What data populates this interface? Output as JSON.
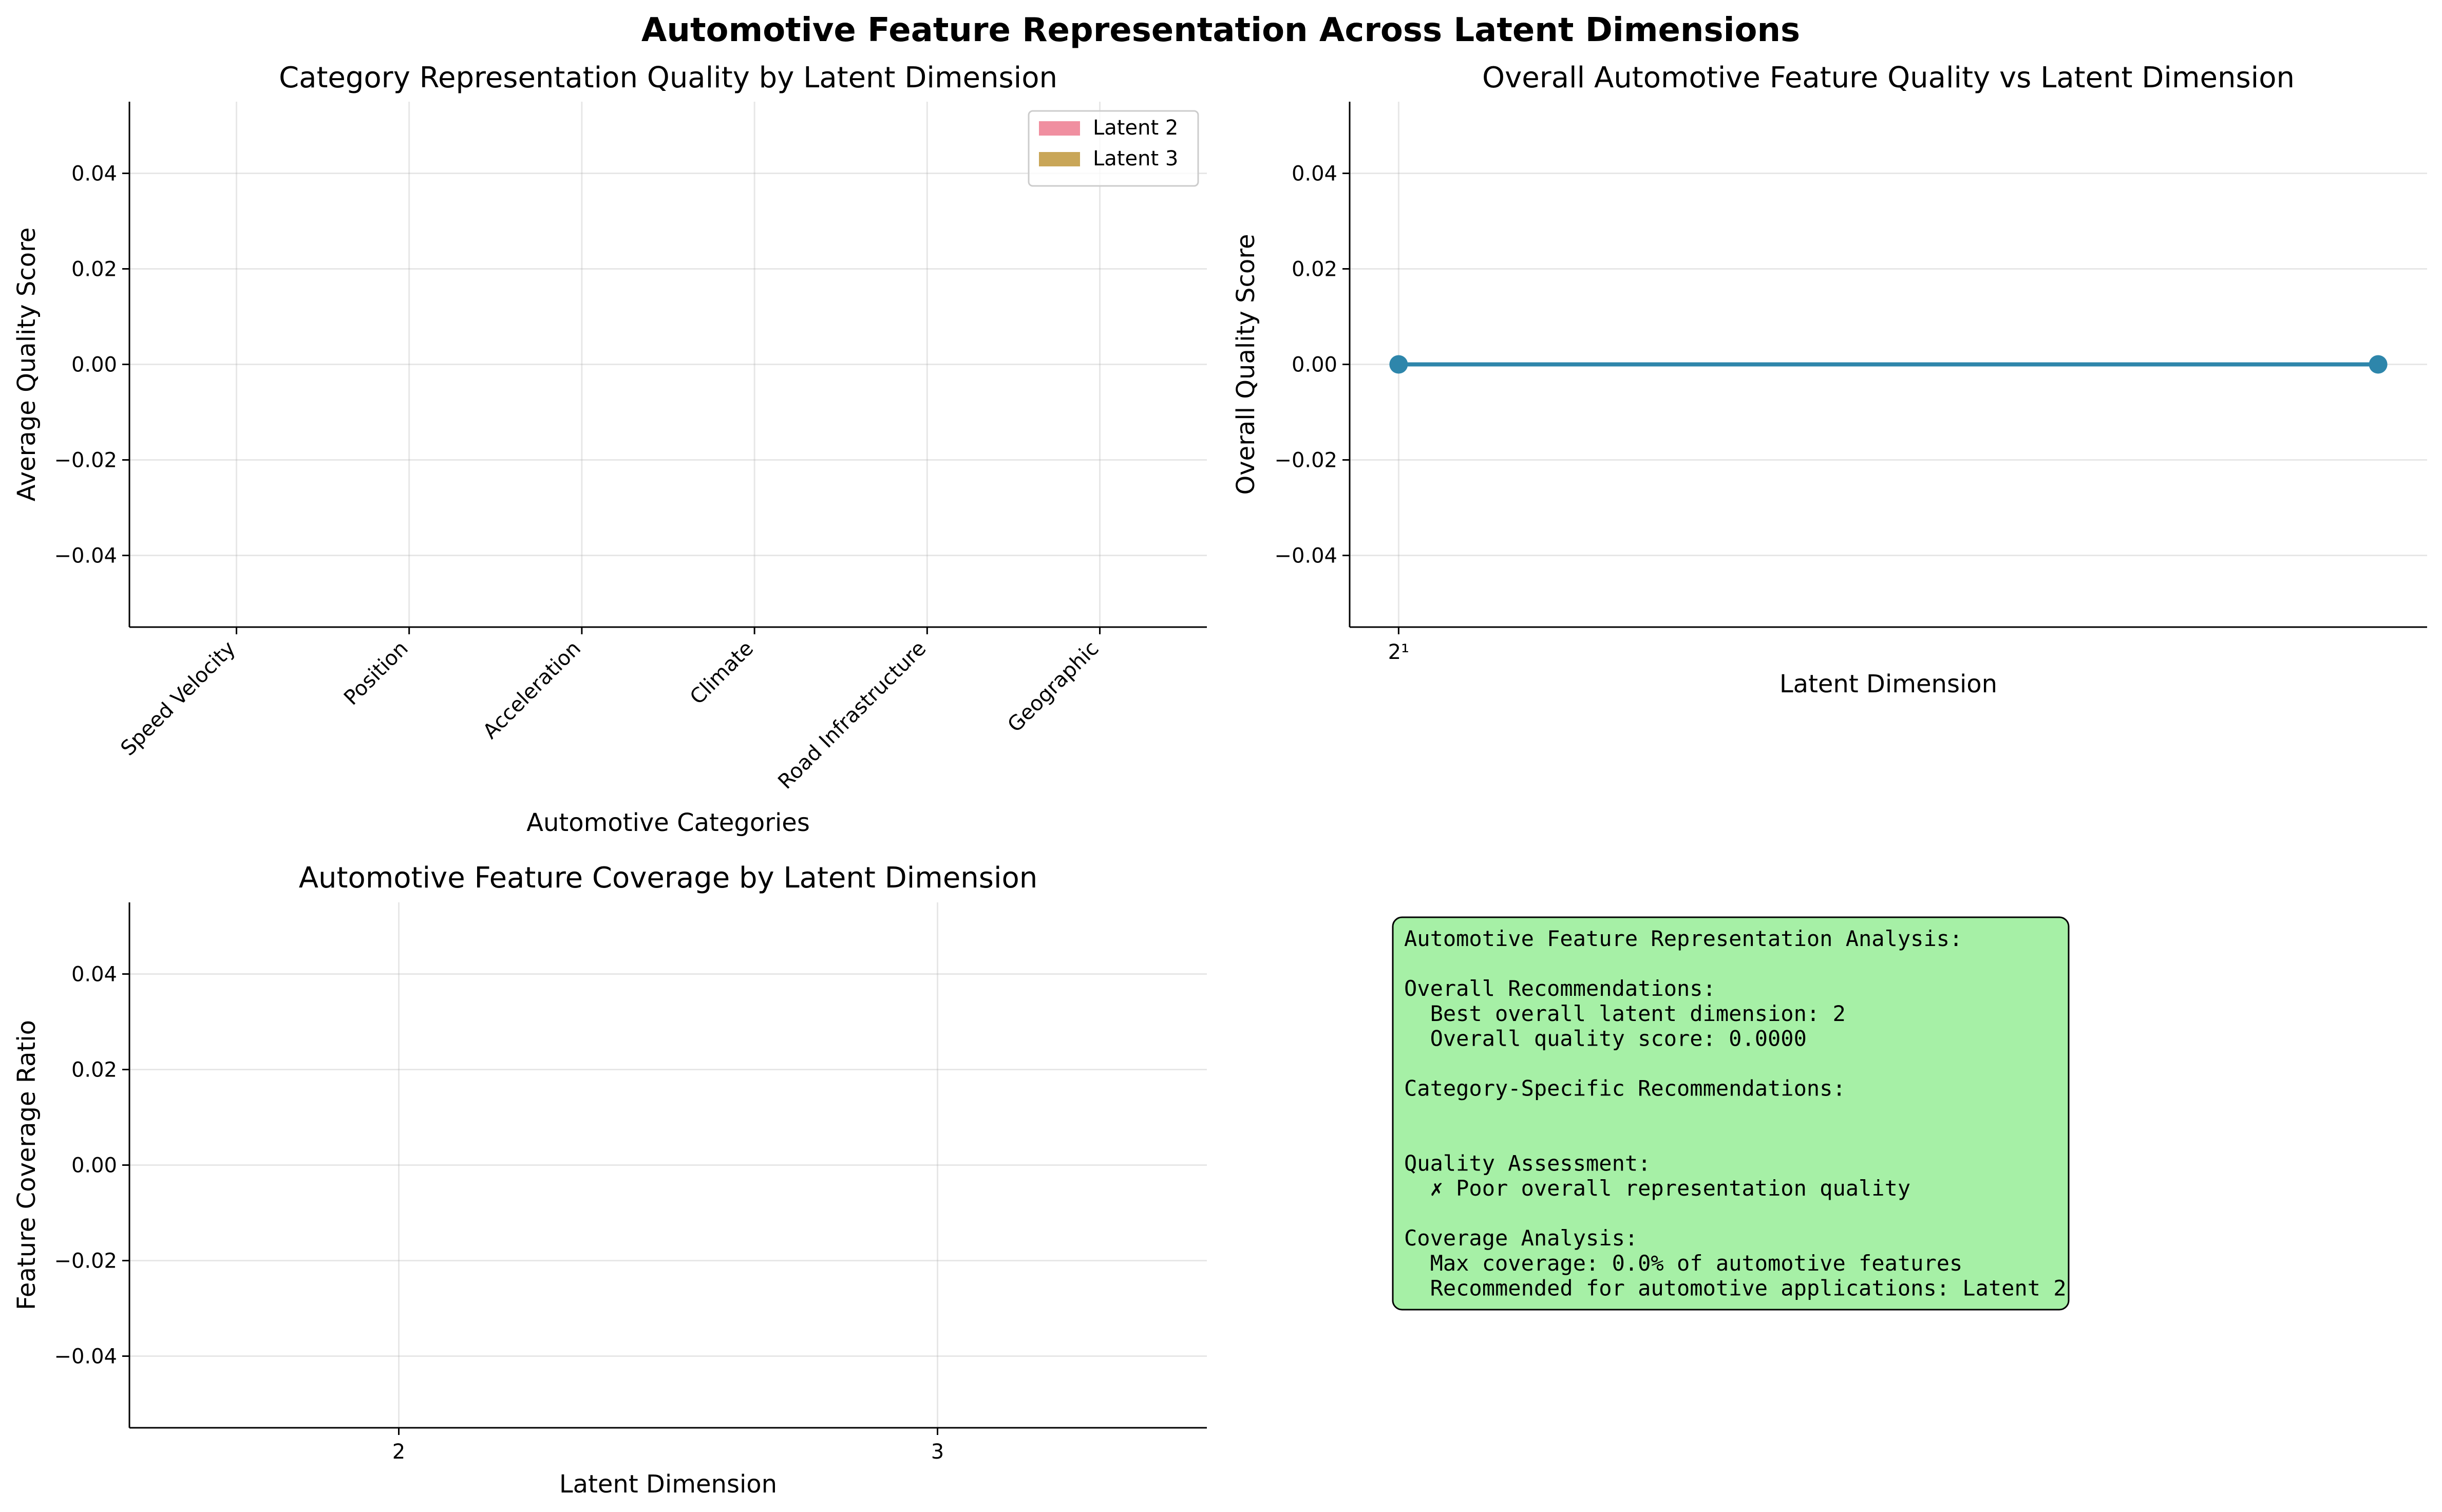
{
  "figure": {
    "suptitle": "Automotive Feature Representation Across Latent Dimensions"
  },
  "colors": {
    "latent2": "#f08fa0",
    "latent3": "#c9a658",
    "line": "#2e86ab",
    "textbox_bg": "#a6f0a6",
    "grid": "#b0b0b0"
  },
  "chart_data": [
    {
      "type": "bar",
      "title": "Category Representation Quality by Latent Dimension",
      "xlabel": "Automotive Categories",
      "ylabel": "Average Quality Score",
      "categories": [
        "Speed Velocity",
        "Position",
        "Acceleration",
        "Climate",
        "Road Infrastructure",
        "Geographic"
      ],
      "series": [
        {
          "name": "Latent 2",
          "values": [
            0,
            0,
            0,
            0,
            0,
            0
          ]
        },
        {
          "name": "Latent 3",
          "values": [
            0,
            0,
            0,
            0,
            0,
            0
          ]
        }
      ],
      "ylim": [
        -0.055,
        0.055
      ],
      "yticks": [
        0.04,
        0.02,
        0.0,
        -0.02,
        -0.04
      ],
      "ytick_labels": [
        "0.04",
        "0.02",
        "0.00",
        "−0.02",
        "−0.04"
      ],
      "legend": "top-right",
      "grid": true
    },
    {
      "type": "line",
      "title": "Overall Automotive Feature Quality vs Latent Dimension",
      "xlabel": "Latent Dimension",
      "ylabel": "Overall Quality Score",
      "x": [
        2,
        3
      ],
      "y": [
        0.0,
        0.0
      ],
      "xscale": "log",
      "xticks": [
        2
      ],
      "xtick_labels": [
        "2¹"
      ],
      "ylim": [
        -0.055,
        0.055
      ],
      "yticks": [
        0.04,
        0.02,
        0.0,
        -0.02,
        -0.04
      ],
      "ytick_labels": [
        "0.04",
        "0.02",
        "0.00",
        "−0.02",
        "−0.04"
      ],
      "grid": true
    },
    {
      "type": "bar",
      "title": "Automotive Feature Coverage by Latent Dimension",
      "xlabel": "Latent Dimension",
      "ylabel": "Feature Coverage Ratio",
      "categories": [
        "2",
        "3"
      ],
      "values": [
        0,
        0
      ],
      "ylim": [
        -0.055,
        0.055
      ],
      "yticks": [
        0.04,
        0.02,
        0.0,
        -0.02,
        -0.04
      ],
      "ytick_labels": [
        "0.04",
        "0.02",
        "0.00",
        "−0.02",
        "−0.04"
      ],
      "grid": true
    }
  ],
  "summary": {
    "lines": [
      "Automotive Feature Representation Analysis:",
      "",
      "Overall Recommendations:",
      "  Best overall latent dimension: 2",
      "  Overall quality score: 0.0000",
      "",
      "Category-Specific Recommendations:",
      "",
      "",
      "Quality Assessment:",
      "  ✗ Poor overall representation quality",
      "",
      "Coverage Analysis:",
      "  Max coverage: 0.0% of automotive features",
      "  Recommended for automotive applications: Latent 2"
    ]
  }
}
